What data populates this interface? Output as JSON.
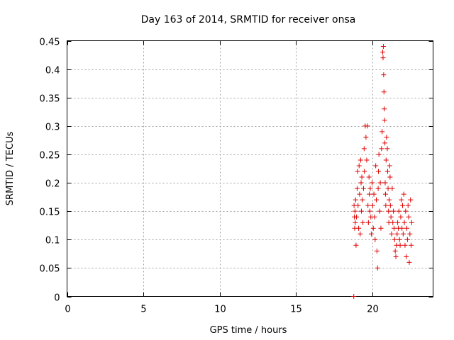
{
  "chart_data": {
    "type": "scatter",
    "title": "Day 163 of 2014, SRMTID for receiver onsa",
    "xlabel": "GPS time / hours",
    "ylabel": "SRMTID / TECUs",
    "xlim": [
      0,
      24
    ],
    "ylim": [
      0,
      0.45
    ],
    "xticks": [
      0,
      5,
      10,
      15,
      20
    ],
    "xtick_labels": [
      "0",
      "5",
      "10",
      "15",
      "20"
    ],
    "yticks": [
      0,
      0.05,
      0.1,
      0.15,
      0.2,
      0.25,
      0.3,
      0.35,
      0.4,
      0.45
    ],
    "ytick_labels": [
      "0",
      "0.05",
      "0.1",
      "0.15",
      "0.2",
      "0.25",
      "0.3",
      "0.35",
      "0.4",
      "0.45"
    ],
    "grid": true,
    "marker": "plus",
    "color": "#e00000",
    "series": [
      {
        "name": "SRMTID",
        "x": [
          18.8,
          18.82,
          18.84,
          18.86,
          18.88,
          18.9,
          18.92,
          18.95,
          18.98,
          19.02,
          19.05,
          19.08,
          19.12,
          19.15,
          19.18,
          19.22,
          19.25,
          19.28,
          19.3,
          19.33,
          19.36,
          19.4,
          19.44,
          19.48,
          19.5,
          19.55,
          19.6,
          19.65,
          19.7,
          19.73,
          19.76,
          19.8,
          19.82,
          19.85,
          19.88,
          19.92,
          19.95,
          20.0,
          20.04,
          20.08,
          20.12,
          20.16,
          20.2,
          20.24,
          20.28,
          20.32,
          20.36,
          20.4,
          20.42,
          20.45,
          20.5,
          20.54,
          20.58,
          20.62,
          20.66,
          20.7,
          20.72,
          20.74,
          20.76,
          20.78,
          20.8,
          20.82,
          20.84,
          20.86,
          20.88,
          20.9,
          20.92,
          20.95,
          21.0,
          21.02,
          21.05,
          21.08,
          21.1,
          21.12,
          21.15,
          21.18,
          21.2,
          21.24,
          21.28,
          21.32,
          21.36,
          21.4,
          21.44,
          21.48,
          21.52,
          21.56,
          21.6,
          21.64,
          21.68,
          21.72,
          21.76,
          21.8,
          21.84,
          21.88,
          21.92,
          21.96,
          22.0,
          22.04,
          22.08,
          22.12,
          22.16,
          22.2,
          22.24,
          22.28,
          22.32,
          22.36,
          22.4,
          22.44,
          22.48,
          22.52,
          22.56,
          22.6
        ],
        "y": [
          0.0,
          0.16,
          0.14,
          0.12,
          0.15,
          0.13,
          0.17,
          0.09,
          0.14,
          0.19,
          0.22,
          0.16,
          0.12,
          0.23,
          0.18,
          0.11,
          0.24,
          0.2,
          0.15,
          0.21,
          0.17,
          0.13,
          0.19,
          0.26,
          0.22,
          0.3,
          0.28,
          0.24,
          0.3,
          0.16,
          0.13,
          0.21,
          0.18,
          0.15,
          0.19,
          0.14,
          0.11,
          0.2,
          0.16,
          0.12,
          0.18,
          0.14,
          0.1,
          0.23,
          0.17,
          0.08,
          0.05,
          0.19,
          0.22,
          0.25,
          0.15,
          0.2,
          0.12,
          0.26,
          0.29,
          0.43,
          0.42,
          0.44,
          0.39,
          0.36,
          0.33,
          0.31,
          0.27,
          0.2,
          0.18,
          0.16,
          0.24,
          0.28,
          0.26,
          0.22,
          0.19,
          0.15,
          0.13,
          0.17,
          0.23,
          0.21,
          0.16,
          0.14,
          0.11,
          0.19,
          0.13,
          0.15,
          0.12,
          0.1,
          0.08,
          0.07,
          0.09,
          0.11,
          0.13,
          0.12,
          0.15,
          0.1,
          0.09,
          0.14,
          0.17,
          0.12,
          0.16,
          0.11,
          0.18,
          0.13,
          0.09,
          0.15,
          0.07,
          0.12,
          0.1,
          0.16,
          0.14,
          0.06,
          0.11,
          0.17,
          0.09,
          0.13
        ]
      }
    ]
  }
}
